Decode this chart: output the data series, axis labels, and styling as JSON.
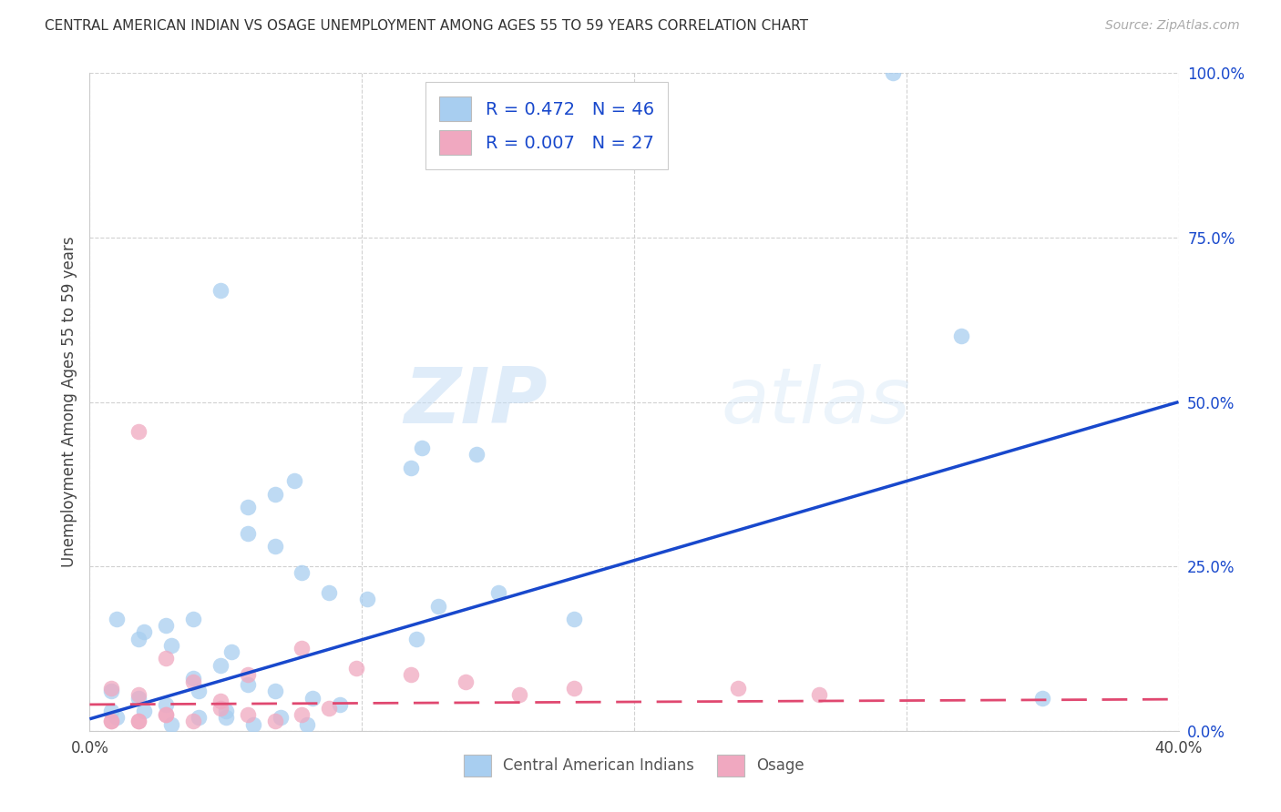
{
  "title": "CENTRAL AMERICAN INDIAN VS OSAGE UNEMPLOYMENT AMONG AGES 55 TO 59 YEARS CORRELATION CHART",
  "source": "Source: ZipAtlas.com",
  "ylabel": "Unemployment Among Ages 55 to 59 years",
  "xlim": [
    0.0,
    0.4
  ],
  "ylim": [
    0.0,
    1.0
  ],
  "xticks": [
    0.0,
    0.1,
    0.2,
    0.3,
    0.4
  ],
  "xtick_labels": [
    "0.0%",
    "",
    "",
    "",
    "40.0%"
  ],
  "yticks": [
    0.0,
    0.25,
    0.5,
    0.75,
    1.0
  ],
  "ytick_labels": [
    "0.0%",
    "25.0%",
    "50.0%",
    "75.0%",
    "100.0%"
  ],
  "watermark_zip": "ZIP",
  "watermark_atlas": "atlas",
  "legend_label1": "Central American Indians",
  "legend_label2": "Osage",
  "R1": 0.472,
  "N1": 46,
  "R2": 0.007,
  "N2": 27,
  "blue_color": "#a8cef0",
  "pink_color": "#f0a8c0",
  "blue_line_color": "#1848CC",
  "pink_line_color": "#E04870",
  "blue_dots_x": [
    0.295,
    0.048,
    0.075,
    0.068,
    0.058,
    0.118,
    0.122,
    0.142,
    0.058,
    0.068,
    0.078,
    0.088,
    0.018,
    0.028,
    0.038,
    0.008,
    0.018,
    0.028,
    0.008,
    0.038,
    0.048,
    0.052,
    0.058,
    0.068,
    0.082,
    0.092,
    0.102,
    0.128,
    0.178,
    0.01,
    0.02,
    0.03,
    0.04,
    0.05,
    0.01,
    0.02,
    0.03,
    0.04,
    0.05,
    0.06,
    0.07,
    0.08,
    0.12,
    0.15,
    0.35,
    0.32
  ],
  "blue_dots_y": [
    1.0,
    0.67,
    0.38,
    0.36,
    0.34,
    0.4,
    0.43,
    0.42,
    0.3,
    0.28,
    0.24,
    0.21,
    0.14,
    0.16,
    0.17,
    0.06,
    0.05,
    0.04,
    0.03,
    0.08,
    0.1,
    0.12,
    0.07,
    0.06,
    0.05,
    0.04,
    0.2,
    0.19,
    0.17,
    0.02,
    0.03,
    0.01,
    0.02,
    0.02,
    0.17,
    0.15,
    0.13,
    0.06,
    0.03,
    0.01,
    0.02,
    0.01,
    0.14,
    0.21,
    0.05,
    0.6
  ],
  "pink_dots_x": [
    0.018,
    0.028,
    0.008,
    0.018,
    0.038,
    0.048,
    0.058,
    0.028,
    0.078,
    0.098,
    0.118,
    0.138,
    0.158,
    0.178,
    0.238,
    0.268,
    0.008,
    0.018,
    0.028,
    0.038,
    0.048,
    0.058,
    0.068,
    0.078,
    0.088,
    0.008,
    0.018
  ],
  "pink_dots_y": [
    0.455,
    0.11,
    0.065,
    0.055,
    0.075,
    0.045,
    0.085,
    0.025,
    0.125,
    0.095,
    0.085,
    0.075,
    0.055,
    0.065,
    0.065,
    0.055,
    0.015,
    0.015,
    0.025,
    0.015,
    0.035,
    0.025,
    0.015,
    0.025,
    0.035,
    0.015,
    0.015
  ],
  "blue_trendline_x": [
    0.0,
    0.4
  ],
  "blue_trendline_y": [
    0.018,
    0.5
  ],
  "pink_trendline_x": [
    0.0,
    0.4
  ],
  "pink_trendline_y": [
    0.04,
    0.048
  ]
}
